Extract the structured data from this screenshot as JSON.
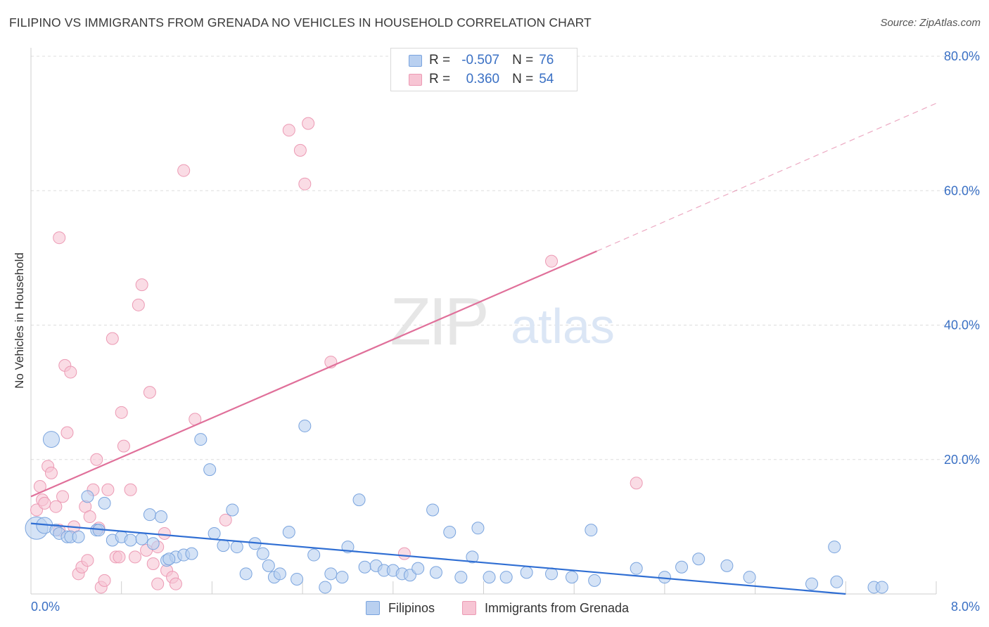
{
  "title": "FILIPINO VS IMMIGRANTS FROM GRENADA NO VEHICLES IN HOUSEHOLD CORRELATION CHART",
  "source": "Source: ZipAtlas.com",
  "watermark": {
    "zip": "ZIP",
    "atlas": "atlas"
  },
  "legend": {
    "rows": [
      {
        "r_label": "R =",
        "r_value": "-0.507",
        "n_label": "N =",
        "n_value": "76"
      },
      {
        "r_label": "R =",
        "r_value": "0.360",
        "n_label": "N =",
        "n_value": "54"
      }
    ]
  },
  "bottom_legend": {
    "filipinos": "Filipinos",
    "grenada": "Immigrants from Grenada"
  },
  "colors": {
    "blue_fill": "#b9d0f0",
    "blue_stroke": "#7aa4de",
    "blue_line": "#2f6ed3",
    "pink_fill": "#f7c5d4",
    "pink_stroke": "#ec9ab4",
    "pink_line": "#e0709a",
    "axis_text": "#3a70c4",
    "grid": "#dddddd"
  },
  "chart_data": {
    "type": "scatter",
    "title": "FILIPINO VS IMMIGRANTS FROM GRENADA NO VEHICLES IN HOUSEHOLD CORRELATION CHART",
    "xlabel": "",
    "ylabel": "No Vehicles in Household",
    "xlim": [
      0,
      8
    ],
    "ylim": [
      0,
      80
    ],
    "x_tick_labels": [
      "0.0%",
      "8.0%"
    ],
    "y_ticks": [
      20,
      40,
      60,
      80
    ],
    "y_tick_labels": [
      "20.0%",
      "40.0%",
      "60.0%",
      "80.0%"
    ],
    "grid": true,
    "series": [
      {
        "name": "Filipinos",
        "r": -0.507,
        "n": 76,
        "trend": {
          "x0": 0.0,
          "y0": 10.5,
          "x1": 7.2,
          "y1": 0.0
        },
        "points": [
          [
            0.05,
            9.8,
            3
          ],
          [
            0.12,
            10.2,
            2
          ],
          [
            0.18,
            23.0,
            2
          ],
          [
            0.22,
            9.5,
            1
          ],
          [
            0.25,
            9.0,
            1
          ],
          [
            0.32,
            8.5,
            1
          ],
          [
            0.35,
            8.5,
            1
          ],
          [
            0.42,
            8.5,
            1
          ],
          [
            0.5,
            14.5,
            1
          ],
          [
            0.58,
            9.5,
            1
          ],
          [
            0.65,
            13.5,
            1
          ],
          [
            0.72,
            8.0,
            1
          ],
          [
            0.8,
            8.5,
            1
          ],
          [
            0.88,
            8.0,
            1
          ],
          [
            0.98,
            8.2,
            1
          ],
          [
            1.05,
            11.8,
            1
          ],
          [
            1.08,
            7.5,
            1
          ],
          [
            1.15,
            11.5,
            1
          ],
          [
            1.2,
            5.0,
            1
          ],
          [
            1.28,
            5.5,
            1
          ],
          [
            1.35,
            5.8,
            1
          ],
          [
            1.42,
            6.0,
            1
          ],
          [
            1.5,
            23.0,
            1
          ],
          [
            1.58,
            18.5,
            1
          ],
          [
            1.62,
            9.0,
            1
          ],
          [
            1.7,
            7.2,
            1
          ],
          [
            1.78,
            12.5,
            1
          ],
          [
            1.82,
            7.0,
            1
          ],
          [
            1.9,
            3.0,
            1
          ],
          [
            1.98,
            7.5,
            1
          ],
          [
            2.05,
            6.0,
            1
          ],
          [
            2.1,
            4.2,
            1
          ],
          [
            2.15,
            2.5,
            1
          ],
          [
            2.2,
            3.0,
            1
          ],
          [
            2.28,
            9.2,
            1
          ],
          [
            2.35,
            2.2,
            1
          ],
          [
            2.42,
            25.0,
            1
          ],
          [
            2.5,
            5.8,
            1
          ],
          [
            2.6,
            1.0,
            1
          ],
          [
            2.65,
            3.0,
            1
          ],
          [
            2.75,
            2.5,
            1
          ],
          [
            2.8,
            7.0,
            1
          ],
          [
            2.9,
            14.0,
            1
          ],
          [
            2.95,
            4.0,
            1
          ],
          [
            3.05,
            4.2,
            1
          ],
          [
            3.12,
            3.5,
            1
          ],
          [
            3.2,
            3.5,
            1
          ],
          [
            3.28,
            3.0,
            1
          ],
          [
            3.35,
            2.8,
            1
          ],
          [
            3.42,
            3.8,
            1
          ],
          [
            3.55,
            12.5,
            1
          ],
          [
            3.58,
            3.2,
            1
          ],
          [
            3.7,
            9.2,
            1
          ],
          [
            3.8,
            2.5,
            1
          ],
          [
            3.9,
            5.5,
            1
          ],
          [
            3.95,
            9.8,
            1
          ],
          [
            4.05,
            2.5,
            1
          ],
          [
            4.2,
            2.5,
            1
          ],
          [
            4.38,
            3.2,
            1
          ],
          [
            4.6,
            3.0,
            1
          ],
          [
            4.78,
            2.5,
            1
          ],
          [
            4.95,
            9.5,
            1
          ],
          [
            4.98,
            2.0,
            1
          ],
          [
            5.35,
            3.8,
            1
          ],
          [
            5.6,
            2.5,
            1
          ],
          [
            5.75,
            4.0,
            1
          ],
          [
            5.9,
            5.2,
            1
          ],
          [
            6.15,
            4.2,
            1
          ],
          [
            6.35,
            2.5,
            1
          ],
          [
            6.9,
            1.5,
            1
          ],
          [
            7.1,
            7.0,
            1
          ],
          [
            7.12,
            1.8,
            1
          ],
          [
            7.45,
            1.0,
            1
          ],
          [
            7.52,
            1.0,
            1
          ],
          [
            0.6,
            9.5,
            1
          ],
          [
            1.22,
            5.2,
            1
          ]
        ]
      },
      {
        "name": "Immigrants from Grenada",
        "r": 0.36,
        "n": 54,
        "trend": {
          "x0": 0.0,
          "y0": 14.5,
          "x1": 5.0,
          "y1": 51.0,
          "dash_x1": 8.0,
          "dash_y1": 73.0
        },
        "points": [
          [
            0.05,
            12.5
          ],
          [
            0.08,
            16.0
          ],
          [
            0.1,
            14.0
          ],
          [
            0.12,
            13.5
          ],
          [
            0.15,
            19.0
          ],
          [
            0.18,
            18.0
          ],
          [
            0.22,
            13.0
          ],
          [
            0.25,
            9.5
          ],
          [
            0.28,
            14.5
          ],
          [
            0.25,
            53.0
          ],
          [
            0.3,
            34.0
          ],
          [
            0.35,
            33.0
          ],
          [
            0.32,
            24.0
          ],
          [
            0.38,
            10.0
          ],
          [
            0.42,
            3.0
          ],
          [
            0.45,
            4.0
          ],
          [
            0.48,
            13.0
          ],
          [
            0.5,
            5.0
          ],
          [
            0.52,
            11.5
          ],
          [
            0.55,
            15.5
          ],
          [
            0.58,
            20.0
          ],
          [
            0.6,
            9.8
          ],
          [
            0.62,
            1.0
          ],
          [
            0.65,
            2.0
          ],
          [
            0.68,
            15.5
          ],
          [
            0.72,
            38.0
          ],
          [
            0.75,
            5.5
          ],
          [
            0.78,
            5.5
          ],
          [
            0.8,
            27.0
          ],
          [
            0.82,
            22.0
          ],
          [
            0.88,
            15.5
          ],
          [
            0.92,
            5.5
          ],
          [
            0.95,
            43.0
          ],
          [
            0.98,
            46.0
          ],
          [
            1.02,
            6.5
          ],
          [
            1.05,
            30.0
          ],
          [
            1.08,
            4.5
          ],
          [
            1.12,
            1.5
          ],
          [
            1.18,
            9.0
          ],
          [
            1.2,
            3.5
          ],
          [
            1.25,
            2.5
          ],
          [
            1.28,
            1.5
          ],
          [
            1.35,
            63.0
          ],
          [
            1.45,
            26.0
          ],
          [
            1.72,
            11.0
          ],
          [
            2.28,
            69.0
          ],
          [
            2.38,
            66.0
          ],
          [
            2.42,
            61.0
          ],
          [
            2.45,
            70.0
          ],
          [
            2.65,
            34.5
          ],
          [
            3.3,
            6.0
          ],
          [
            4.6,
            49.5
          ],
          [
            5.35,
            16.5
          ],
          [
            1.12,
            7.0
          ]
        ]
      }
    ]
  }
}
